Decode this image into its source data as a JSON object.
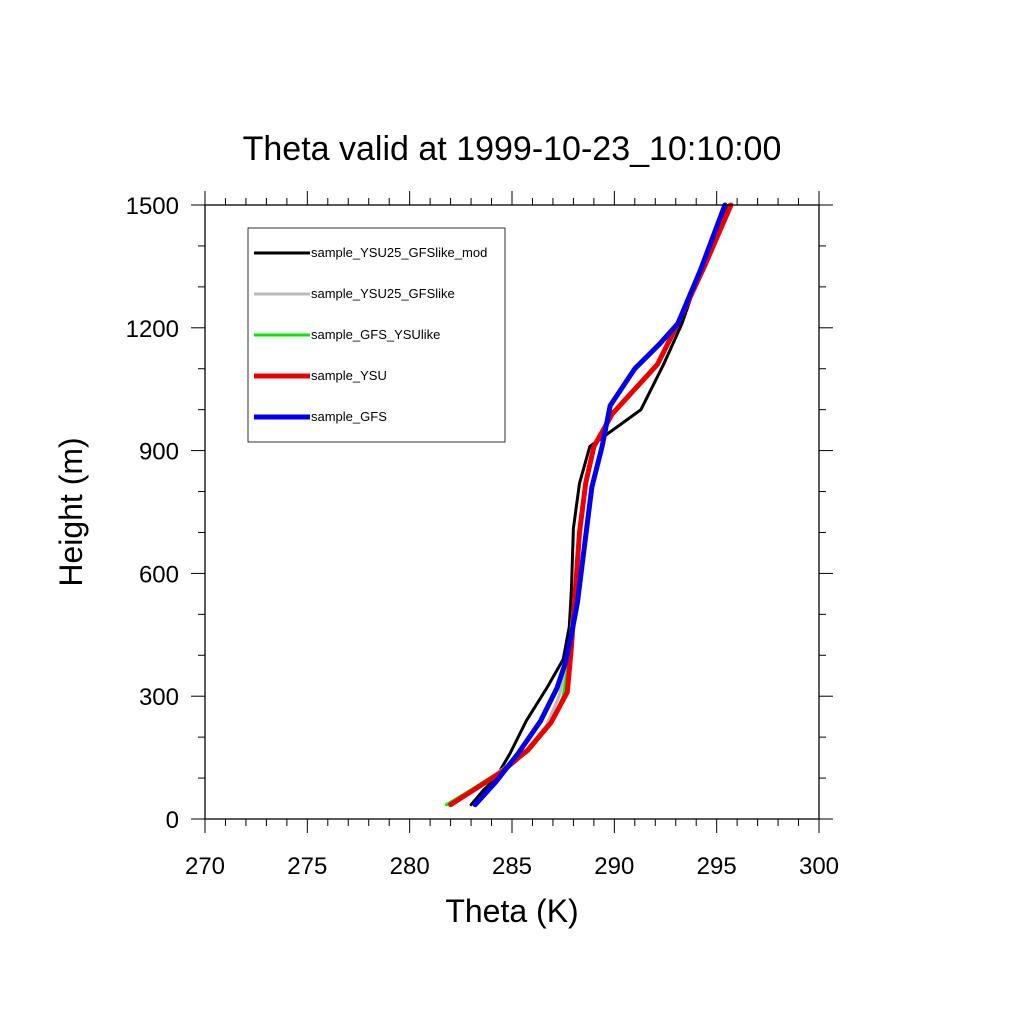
{
  "chart_data": {
    "type": "line",
    "title": "Theta valid at 1999-10-23_10:10:00",
    "xlabel": "Theta (K)",
    "ylabel": "Height (m)",
    "xlim": [
      270,
      300
    ],
    "ylim": [
      0,
      1500
    ],
    "xticks": [
      270,
      275,
      280,
      285,
      290,
      295,
      300
    ],
    "yticks": [
      0,
      300,
      600,
      900,
      1200,
      1500
    ],
    "grid": false,
    "legend_position": "top-left",
    "series": [
      {
        "name": "sample_YSU25_GFSlike_mod",
        "color": "#000000",
        "width": 3,
        "x": [
          283.0,
          283.6,
          284.2,
          284.9,
          285.7,
          286.7,
          287.5,
          287.8,
          287.9,
          288.0,
          288.3,
          288.8,
          290.2,
          291.3,
          292.4,
          293.3,
          294.2,
          295.6
        ],
        "y": [
          35,
          70,
          100,
          160,
          240,
          320,
          390,
          470,
          560,
          710,
          820,
          910,
          960,
          1000,
          1110,
          1210,
          1340,
          1500
        ]
      },
      {
        "name": "sample_YSU25_GFSlike",
        "color": "#bbbbbb",
        "width": 3,
        "x": [
          282.1,
          283.0,
          284.2,
          285.6,
          286.7,
          287.3,
          287.6,
          287.8,
          287.9,
          288.0
        ],
        "y": [
          35,
          70,
          110,
          160,
          230,
          300,
          360,
          420,
          470,
          520
        ]
      },
      {
        "name": "sample_GFS_YSUlike",
        "color": "#00ee00",
        "width": 3,
        "x": [
          281.8,
          282.8,
          284.4,
          285.8,
          287.0,
          287.5,
          287.7,
          287.9,
          288.0
        ],
        "y": [
          35,
          65,
          115,
          165,
          240,
          300,
          360,
          420,
          470
        ]
      },
      {
        "name": "sample_YSU",
        "color": "#ee0000",
        "width": 5,
        "x": [
          282.0,
          283.1,
          284.5,
          285.8,
          286.9,
          287.7,
          287.9,
          288.1,
          288.3,
          288.6,
          289.0,
          289.9,
          291.0,
          292.1,
          293.1,
          294.4,
          295.7
        ],
        "y": [
          35,
          70,
          115,
          170,
          235,
          310,
          420,
          560,
          700,
          820,
          910,
          990,
          1050,
          1110,
          1210,
          1350,
          1500
        ]
      },
      {
        "name": "sample_GFS",
        "color": "#0000ee",
        "width": 5,
        "x": [
          283.2,
          284.2,
          285.3,
          286.4,
          287.2,
          287.6,
          287.9,
          288.2,
          288.5,
          288.9,
          289.4,
          289.8,
          291.0,
          292.2,
          293.1,
          294.2,
          295.4
        ],
        "y": [
          35,
          90,
          160,
          240,
          320,
          380,
          450,
          530,
          650,
          810,
          910,
          1010,
          1100,
          1160,
          1210,
          1340,
          1500
        ]
      }
    ]
  }
}
